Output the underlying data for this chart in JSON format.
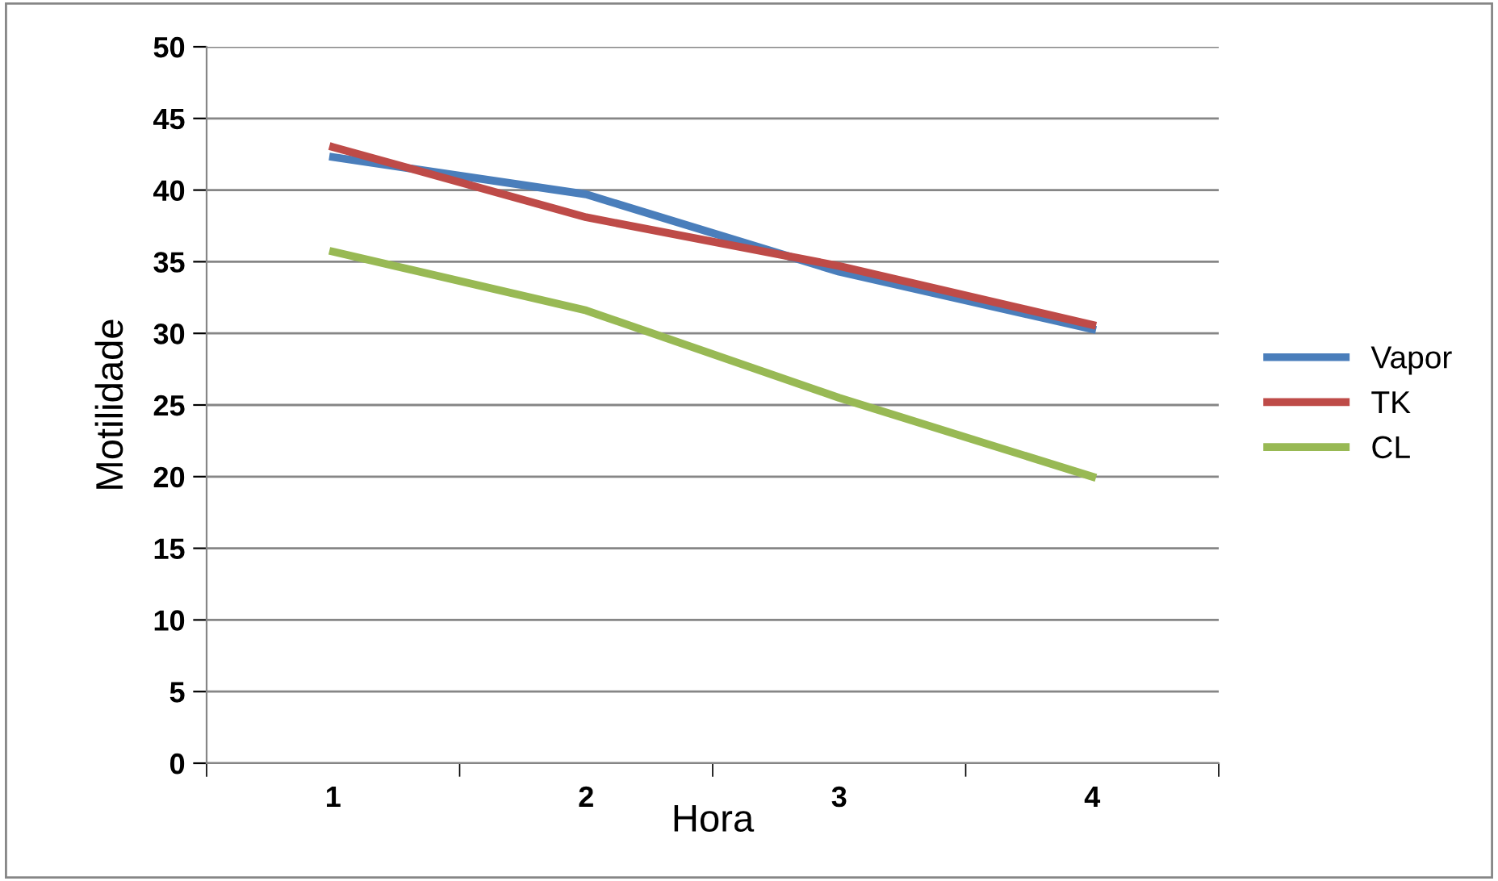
{
  "chart_data": {
    "type": "line",
    "xlabel": "Hora",
    "ylabel": "Motilidade",
    "categories": [
      "1",
      "2",
      "3",
      "4"
    ],
    "series": [
      {
        "name": "Vapor",
        "color": "#4a7ebb",
        "values": [
          42.3,
          39.7,
          34.3,
          30.3
        ]
      },
      {
        "name": "TK",
        "color": "#be4b48",
        "values": [
          43,
          38.1,
          34.7,
          30.6
        ]
      },
      {
        "name": "CL",
        "color": "#98b954",
        "values": [
          35.7,
          31.6,
          25.5,
          20
        ]
      }
    ],
    "ylim": [
      0,
      50
    ],
    "yticks": [
      0,
      5,
      10,
      15,
      20,
      25,
      30,
      35,
      40,
      45,
      50
    ],
    "grid": "y",
    "legend": "right",
    "marker": "none",
    "line_style": "solid"
  }
}
